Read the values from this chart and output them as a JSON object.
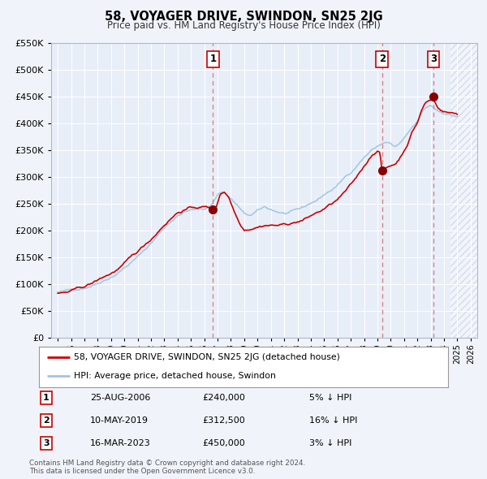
{
  "title": "58, VOYAGER DRIVE, SWINDON, SN25 2JG",
  "subtitle": "Price paid vs. HM Land Registry's House Price Index (HPI)",
  "legend_line1": "58, VOYAGER DRIVE, SWINDON, SN25 2JG (detached house)",
  "legend_line2": "HPI: Average price, detached house, Swindon",
  "footer": "Contains HM Land Registry data © Crown copyright and database right 2024.\nThis data is licensed under the Open Government Licence v3.0.",
  "transactions": [
    {
      "num": 1,
      "date": "25-AUG-2006",
      "price": "£240,000",
      "pct": "5% ↓ HPI",
      "x": 2006.65
    },
    {
      "num": 2,
      "date": "10-MAY-2019",
      "price": "£312,500",
      "pct": "16% ↓ HPI",
      "x": 2019.36
    },
    {
      "num": 3,
      "date": "16-MAR-2023",
      "price": "£450,000",
      "pct": "3% ↓ HPI",
      "x": 2023.21
    }
  ],
  "transaction_prices": [
    240000,
    312500,
    450000
  ],
  "price_line_color": "#cc0000",
  "hpi_line_color": "#a0c4e0",
  "vline_color": "#e08080",
  "background_color": "#f0f4fa",
  "plot_bg_color": "#e8eef8",
  "ylim": [
    0,
    550000
  ],
  "yticks": [
    0,
    50000,
    100000,
    150000,
    200000,
    250000,
    300000,
    350000,
    400000,
    450000,
    500000,
    550000
  ],
  "xlim": [
    1994.5,
    2026.5
  ],
  "xticks": [
    1995,
    1996,
    1997,
    1998,
    1999,
    2000,
    2001,
    2002,
    2003,
    2004,
    2005,
    2006,
    2007,
    2008,
    2009,
    2010,
    2011,
    2012,
    2013,
    2014,
    2015,
    2016,
    2017,
    2018,
    2019,
    2020,
    2021,
    2022,
    2023,
    2024,
    2025,
    2026
  ]
}
